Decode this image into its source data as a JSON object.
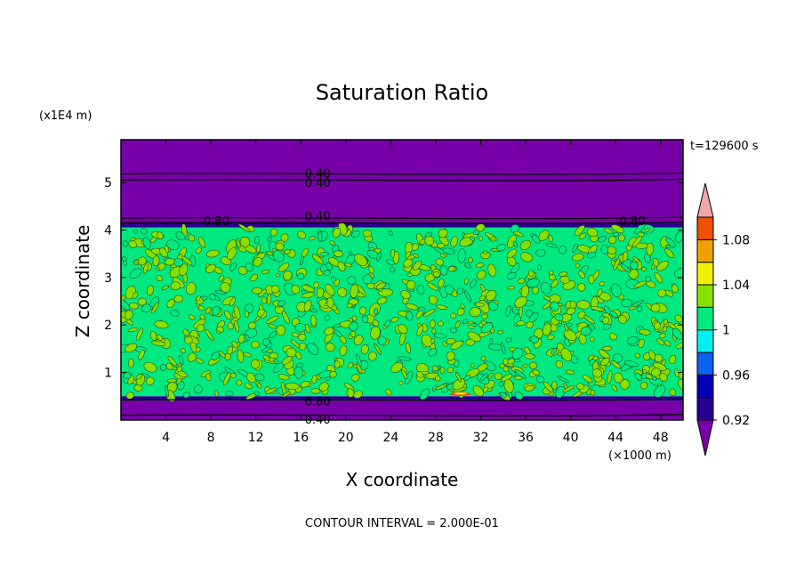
{
  "chart_data": {
    "type": "heatmap",
    "title": "Saturation Ratio",
    "xlabel": "X coordinate",
    "ylabel": "Z coordinate",
    "x_unit": "(×1000 m)",
    "y_unit": "(x1E4 m)",
    "time_label": "t=129600 s",
    "footer": "CONTOUR INTERVAL = 2.000E-01",
    "xlim": [
      0,
      50
    ],
    "ylim": [
      0,
      5.9
    ],
    "x_ticks": [
      4,
      8,
      12,
      16,
      20,
      24,
      28,
      32,
      36,
      40,
      44,
      48
    ],
    "x_tick_labels": [
      "4",
      "8",
      "12",
      "16",
      "20",
      "24",
      "28",
      "32",
      "36",
      "40",
      "44",
      "48"
    ],
    "y_ticks": [
      1,
      2,
      3,
      4,
      5
    ],
    "y_tick_labels": [
      "1",
      "2",
      "3",
      "4",
      "5"
    ],
    "colorbar": {
      "levels": [
        0.92,
        0.94,
        0.96,
        0.98,
        1.0,
        1.02,
        1.04,
        1.06,
        1.08,
        1.1
      ],
      "labels": [
        "0.92",
        "0.96",
        "1",
        "1.04",
        "1.08"
      ],
      "label_values": [
        0.92,
        0.96,
        1.0,
        1.04,
        1.08
      ],
      "colors": [
        "#7800a8",
        "#2a0090",
        "#0000b4",
        "#0a62f0",
        "#00f0f0",
        "#00e880",
        "#88e000",
        "#f0f000",
        "#f0a000",
        "#f05000",
        "#f01010",
        "#f0a8a8"
      ]
    },
    "regions": [
      {
        "name": "upper-dry-layer",
        "z_range": [
          4.15,
          5.9
        ],
        "color_index": 0
      },
      {
        "name": "upper-transition",
        "z_range": [
          4.05,
          4.15
        ],
        "color_index": 1
      },
      {
        "name": "cloud-layer",
        "z_range": [
          0.5,
          4.05
        ],
        "color_index": 5
      },
      {
        "name": "lower-transition",
        "z_range": [
          0.4,
          0.5
        ],
        "color_index": 1
      },
      {
        "name": "lower-dry-layer",
        "z_range": [
          0,
          0.4
        ],
        "color_index": 0
      }
    ],
    "contour_lines": [
      {
        "level": "0.40",
        "z": 5.18
      },
      {
        "level": "0.40",
        "z": 5.05
      },
      {
        "level": "0.40",
        "z": 4.25
      },
      {
        "level": "0.80",
        "z": 4.15
      },
      {
        "level": "0.80",
        "z": 0.42
      },
      {
        "level": "0.40",
        "z": 0.1
      }
    ],
    "contour_labels": [
      {
        "text": "0.40",
        "x": 17.5,
        "z": 5.2
      },
      {
        "text": "0.40",
        "x": 17.5,
        "z": 5.0
      },
      {
        "text": "0.40",
        "x": 17.5,
        "z": 4.3
      },
      {
        "text": "0.80",
        "x": 8.5,
        "z": 4.2
      },
      {
        "text": "0.80",
        "x": 45.5,
        "z": 4.2
      },
      {
        "text": "0.80",
        "x": 17.5,
        "z": 0.4
      },
      {
        "text": "0.40",
        "x": 17.5,
        "z": 0.02
      }
    ]
  }
}
